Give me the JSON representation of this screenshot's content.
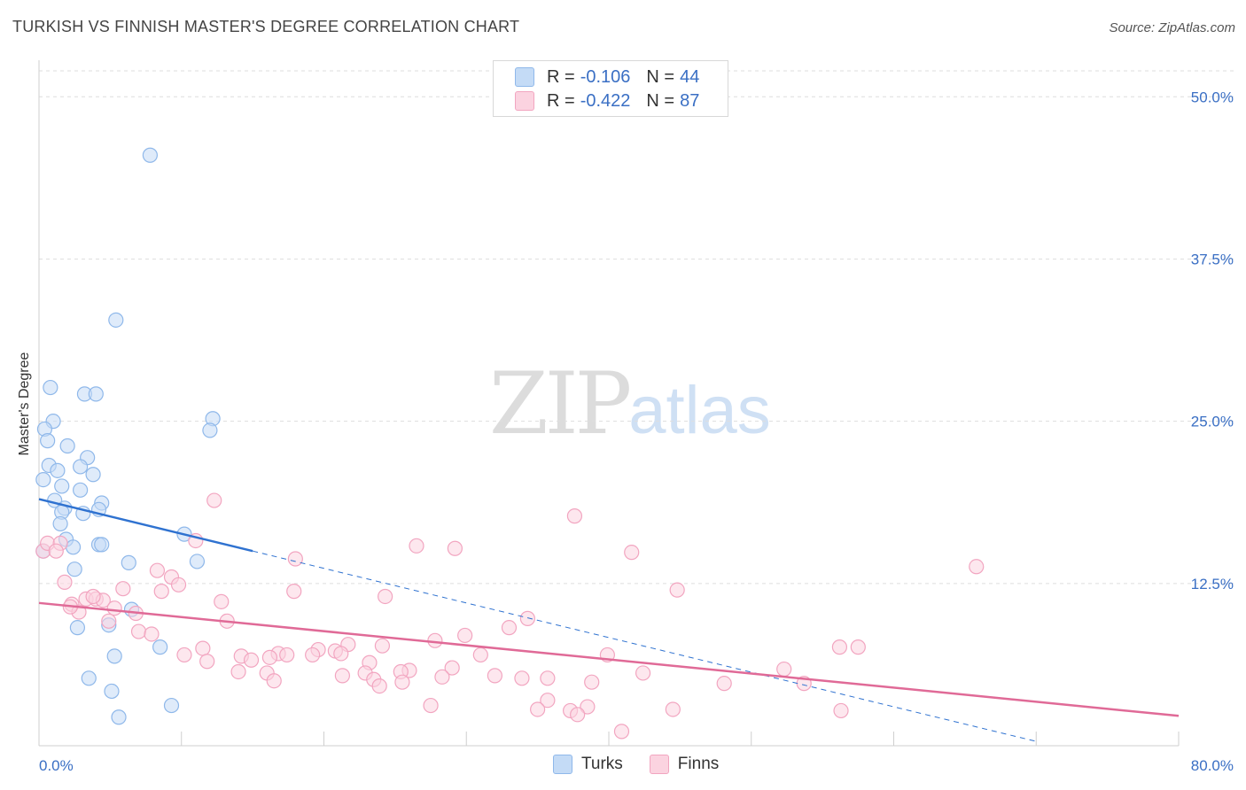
{
  "title": "TURKISH VS FINNISH MASTER'S DEGREE CORRELATION CHART",
  "source": "Source: ZipAtlas.com",
  "watermark": {
    "zip": "ZIP",
    "atlas": "atlas"
  },
  "colors": {
    "turks": "#8fb8ea",
    "turks_fill": "#c4dbf6",
    "finns": "#f2a5c0",
    "finns_fill": "#fbd3e0",
    "turks_line": "#2f72d0",
    "finns_line": "#e06a97",
    "axis_text": "#3a6fc4"
  },
  "legend": {
    "turks": {
      "r_label": "R =",
      "r_value": "-0.106",
      "n_label": "N =",
      "n_value": "44"
    },
    "finns": {
      "r_label": "R =",
      "r_value": "-0.422",
      "n_label": "N =",
      "n_value": "87"
    }
  },
  "bottom_legend": {
    "turks": "Turks",
    "finns": "Finns"
  },
  "chart_data": {
    "type": "scatter",
    "title": "TURKISH VS FINNISH MASTER'S DEGREE CORRELATION CHART",
    "xlabel": "",
    "ylabel": "Master's Degree",
    "xlim": [
      0,
      80
    ],
    "ylim": [
      0,
      52
    ],
    "x_tick_labels": [
      "0.0%",
      "80.0%"
    ],
    "y_ticks": [
      12.5,
      25.0,
      37.5,
      50.0
    ],
    "y_tick_labels": [
      "12.5%",
      "25.0%",
      "37.5%",
      "50.0%"
    ],
    "series": [
      {
        "name": "Turks",
        "points": [
          [
            7.8,
            45.5
          ],
          [
            5.4,
            32.8
          ],
          [
            0.8,
            27.6
          ],
          [
            3.2,
            27.1
          ],
          [
            4.0,
            27.1
          ],
          [
            1.0,
            25.0
          ],
          [
            12.2,
            25.2
          ],
          [
            12.0,
            24.3
          ],
          [
            0.4,
            24.4
          ],
          [
            0.6,
            23.5
          ],
          [
            2.0,
            23.1
          ],
          [
            3.4,
            22.2
          ],
          [
            0.7,
            21.6
          ],
          [
            2.9,
            21.5
          ],
          [
            1.3,
            21.2
          ],
          [
            3.8,
            20.9
          ],
          [
            0.3,
            20.5
          ],
          [
            1.6,
            20.0
          ],
          [
            2.9,
            19.7
          ],
          [
            1.1,
            18.9
          ],
          [
            4.4,
            18.7
          ],
          [
            1.8,
            18.3
          ],
          [
            4.2,
            18.2
          ],
          [
            1.6,
            18.0
          ],
          [
            3.1,
            17.9
          ],
          [
            1.5,
            17.1
          ],
          [
            10.2,
            16.3
          ],
          [
            1.9,
            15.9
          ],
          [
            4.2,
            15.5
          ],
          [
            4.4,
            15.5
          ],
          [
            2.4,
            15.3
          ],
          [
            6.3,
            14.1
          ],
          [
            11.1,
            14.2
          ],
          [
            2.5,
            13.6
          ],
          [
            6.5,
            10.5
          ],
          [
            4.9,
            9.3
          ],
          [
            2.7,
            9.1
          ],
          [
            8.5,
            7.6
          ],
          [
            5.3,
            6.9
          ],
          [
            3.5,
            5.2
          ],
          [
            5.1,
            4.2
          ],
          [
            9.3,
            3.1
          ],
          [
            5.6,
            2.2
          ],
          [
            0.3,
            15.0
          ]
        ]
      },
      {
        "name": "Finns",
        "points": [
          [
            0.3,
            15.0
          ],
          [
            0.6,
            15.6
          ],
          [
            1.5,
            15.6
          ],
          [
            12.3,
            18.9
          ],
          [
            37.6,
            17.7
          ],
          [
            11.0,
            15.8
          ],
          [
            26.5,
            15.4
          ],
          [
            29.2,
            15.2
          ],
          [
            41.6,
            14.9
          ],
          [
            18.0,
            14.4
          ],
          [
            65.8,
            13.8
          ],
          [
            8.3,
            13.5
          ],
          [
            9.3,
            13.0
          ],
          [
            1.8,
            12.6
          ],
          [
            9.8,
            12.4
          ],
          [
            5.9,
            12.1
          ],
          [
            8.6,
            11.9
          ],
          [
            17.9,
            11.9
          ],
          [
            44.8,
            12.0
          ],
          [
            24.3,
            11.5
          ],
          [
            3.3,
            11.3
          ],
          [
            4.0,
            11.3
          ],
          [
            4.5,
            11.2
          ],
          [
            12.8,
            11.1
          ],
          [
            2.3,
            10.9
          ],
          [
            6.8,
            10.2
          ],
          [
            5.3,
            10.6
          ],
          [
            2.8,
            10.3
          ],
          [
            34.3,
            9.8
          ],
          [
            4.9,
            9.6
          ],
          [
            13.2,
            9.6
          ],
          [
            7.0,
            8.8
          ],
          [
            7.9,
            8.6
          ],
          [
            33.0,
            9.1
          ],
          [
            29.9,
            8.5
          ],
          [
            27.8,
            8.1
          ],
          [
            21.7,
            7.8
          ],
          [
            24.1,
            7.7
          ],
          [
            56.2,
            7.6
          ],
          [
            57.5,
            7.6
          ],
          [
            11.5,
            7.5
          ],
          [
            19.6,
            7.4
          ],
          [
            20.8,
            7.3
          ],
          [
            16.8,
            7.1
          ],
          [
            21.2,
            7.1
          ],
          [
            17.4,
            7.0
          ],
          [
            19.2,
            7.0
          ],
          [
            10.2,
            7.0
          ],
          [
            14.2,
            6.9
          ],
          [
            16.2,
            6.8
          ],
          [
            31.0,
            7.0
          ],
          [
            39.9,
            7.0
          ],
          [
            14.9,
            6.6
          ],
          [
            11.8,
            6.5
          ],
          [
            23.2,
            6.4
          ],
          [
            29.0,
            6.0
          ],
          [
            26.0,
            5.8
          ],
          [
            22.9,
            5.6
          ],
          [
            14.0,
            5.7
          ],
          [
            25.4,
            5.7
          ],
          [
            16.0,
            5.6
          ],
          [
            21.3,
            5.4
          ],
          [
            32.0,
            5.4
          ],
          [
            42.4,
            5.6
          ],
          [
            52.3,
            5.9
          ],
          [
            28.3,
            5.3
          ],
          [
            23.5,
            5.1
          ],
          [
            33.9,
            5.2
          ],
          [
            35.7,
            5.2
          ],
          [
            48.1,
            4.8
          ],
          [
            53.7,
            4.8
          ],
          [
            16.5,
            5.0
          ],
          [
            25.5,
            4.9
          ],
          [
            38.8,
            4.9
          ],
          [
            23.9,
            4.6
          ],
          [
            35.7,
            3.5
          ],
          [
            27.5,
            3.1
          ],
          [
            35.0,
            2.8
          ],
          [
            37.3,
            2.7
          ],
          [
            38.5,
            3.0
          ],
          [
            37.8,
            2.4
          ],
          [
            44.5,
            2.8
          ],
          [
            56.3,
            2.7
          ],
          [
            40.9,
            1.1
          ],
          [
            2.2,
            10.7
          ],
          [
            3.8,
            11.5
          ],
          [
            1.2,
            15.0
          ]
        ]
      }
    ],
    "trend_lines": [
      {
        "name": "Turks",
        "x0": 0,
        "y0": 19.0,
        "x1": 15,
        "y1": 15.0,
        "dashed_extension_to_x": 70
      },
      {
        "name": "Finns",
        "x0": 0,
        "y0": 11.0,
        "x1": 80,
        "y1": 2.3
      }
    ]
  }
}
